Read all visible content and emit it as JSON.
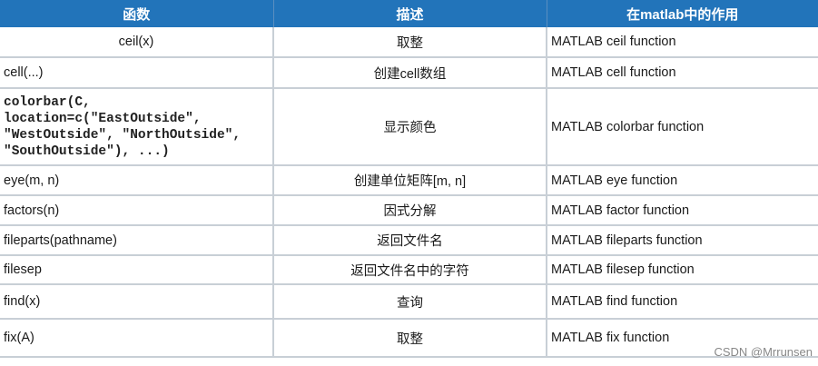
{
  "table": {
    "headers": [
      "函数",
      "描述",
      "在matlab中的作用"
    ],
    "rows": [
      {
        "func": "ceil(x)",
        "desc": "取整",
        "role": "MATLAB ceil function"
      },
      {
        "func": "cell(...)",
        "desc": "创建cell数组",
        "role": "MATLAB cell function"
      },
      {
        "func": "colorbar(C, location=c(\"EastOutside\", \"WestOutside\", \"NorthOutside\", \"SouthOutside\"), ...)",
        "desc": "显示颜色",
        "role": "MATLAB colorbar function"
      },
      {
        "func": "eye(m, n)",
        "desc": "创建单位矩阵[m, n]",
        "role": "MATLAB eye function"
      },
      {
        "func": "factors(n)",
        "desc": "因式分解",
        "role": "MATLAB factor function"
      },
      {
        "func": "fileparts(pathname)",
        "desc": "返回文件名",
        "role": "MATLAB fileparts function"
      },
      {
        "func": "filesep",
        "desc": "返回文件名中的字符",
        "role": "MATLAB filesep function"
      },
      {
        "func": "find(x)",
        "desc": "查询",
        "role": "MATLAB find function"
      },
      {
        "func": "fix(A)",
        "desc": "取整",
        "role": "MATLAB fix function"
      }
    ]
  },
  "watermark": "CSDN @Mrrunsen",
  "colors": {
    "header_bg": "#2274ba",
    "header_text": "#ffffff",
    "grid": "#c8cfd6"
  }
}
